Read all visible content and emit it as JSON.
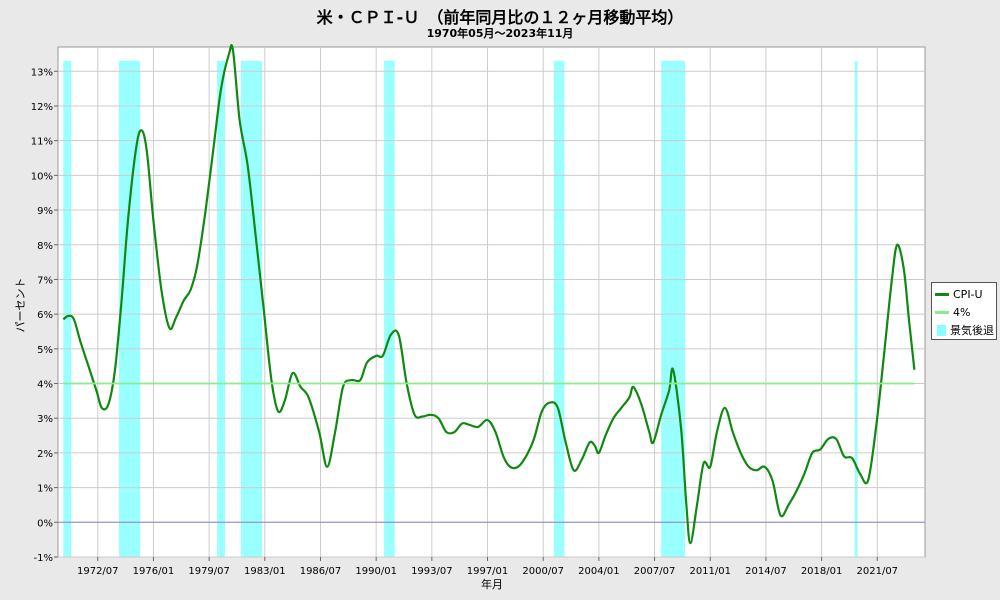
{
  "title": "米・ＣＰＩ-Ｕ　（前年同月比の１２ヶ月移動平均）",
  "subtitle": "1970年05月～2023年11月",
  "colors": {
    "cpi_line": "#118811",
    "four_pct_line": "#88ee88",
    "zero_line": "#8888cc",
    "recession": "#88ffff",
    "plot_bg": "#ffffff",
    "grid": "#cccccc"
  },
  "legend": {
    "items": [
      {
        "label": "CPI-U",
        "kind": "line",
        "color": "#118811"
      },
      {
        "label": "4%",
        "kind": "line",
        "color": "#88ee88"
      },
      {
        "label": "景気後退",
        "kind": "box",
        "color": "#88ffff"
      }
    ]
  },
  "chart_data": {
    "type": "line",
    "title": "米・ＣＰＩ-Ｕ　（前年同月比の１２ヶ月移動平均）",
    "subtitle": "1970年05月～2023年11月",
    "xlabel": "年月",
    "ylabel": "パーセント",
    "xlim": [
      "1970/01",
      "2024/07"
    ],
    "ylim": [
      -1,
      13.7
    ],
    "y_ticks": [
      -1,
      0,
      1,
      2,
      3,
      4,
      5,
      6,
      7,
      8,
      9,
      10,
      11,
      12,
      13
    ],
    "y_tick_labels": [
      "-1%",
      "0%",
      "1%",
      "2%",
      "3%",
      "4%",
      "5%",
      "6%",
      "7%",
      "8%",
      "9%",
      "10%",
      "11%",
      "12%",
      "13%"
    ],
    "x_tick_labels": [
      "1972/07",
      "1976/01",
      "1979/07",
      "1983/01",
      "1986/07",
      "1990/01",
      "1993/07",
      "1997/01",
      "2000/07",
      "2004/01",
      "2007/07",
      "2011/01",
      "2014/07",
      "2018/01",
      "2021/07"
    ],
    "grid": true,
    "legend_position": "right",
    "series": [
      {
        "name": "CPI-U",
        "color": "#118811",
        "points": [
          [
            "1970/05",
            5.85
          ],
          [
            "1970/09",
            5.95
          ],
          [
            "1971/01",
            5.85
          ],
          [
            "1971/06",
            5.2
          ],
          [
            "1971/12",
            4.5
          ],
          [
            "1972/06",
            3.8
          ],
          [
            "1972/10",
            3.3
          ],
          [
            "1973/03",
            3.4
          ],
          [
            "1973/08",
            4.4
          ],
          [
            "1974/01",
            6.4
          ],
          [
            "1974/06",
            8.8
          ],
          [
            "1974/12",
            10.8
          ],
          [
            "1975/04",
            11.3
          ],
          [
            "1975/08",
            10.7
          ],
          [
            "1976/01",
            8.7
          ],
          [
            "1976/07",
            6.7
          ],
          [
            "1977/01",
            5.6
          ],
          [
            "1977/06",
            5.9
          ],
          [
            "1977/12",
            6.4
          ],
          [
            "1978/05",
            6.7
          ],
          [
            "1978/10",
            7.4
          ],
          [
            "1979/04",
            8.9
          ],
          [
            "1979/10",
            10.7
          ],
          [
            "1980/04",
            12.5
          ],
          [
            "1980/10",
            13.5
          ],
          [
            "1981/01",
            13.6
          ],
          [
            "1981/06",
            11.6
          ],
          [
            "1981/12",
            10.3
          ],
          [
            "1982/06",
            8.3
          ],
          [
            "1982/12",
            6.2
          ],
          [
            "1983/06",
            4.1
          ],
          [
            "1983/11",
            3.2
          ],
          [
            "1984/04",
            3.5
          ],
          [
            "1984/10",
            4.3
          ],
          [
            "1985/04",
            3.9
          ],
          [
            "1985/10",
            3.6
          ],
          [
            "1986/06",
            2.6
          ],
          [
            "1986/12",
            1.6
          ],
          [
            "1987/06",
            2.6
          ],
          [
            "1987/12",
            3.9
          ],
          [
            "1988/06",
            4.1
          ],
          [
            "1989/01",
            4.1
          ],
          [
            "1989/06",
            4.6
          ],
          [
            "1990/01",
            4.8
          ],
          [
            "1990/06",
            4.8
          ],
          [
            "1990/12",
            5.4
          ],
          [
            "1991/06",
            5.4
          ],
          [
            "1991/12",
            4.0
          ],
          [
            "1992/06",
            3.1
          ],
          [
            "1992/12",
            3.05
          ],
          [
            "1993/06",
            3.1
          ],
          [
            "1993/12",
            3.0
          ],
          [
            "1994/06",
            2.6
          ],
          [
            "1994/12",
            2.6
          ],
          [
            "1995/06",
            2.85
          ],
          [
            "1995/12",
            2.8
          ],
          [
            "1996/06",
            2.75
          ],
          [
            "1997/01",
            2.95
          ],
          [
            "1997/07",
            2.6
          ],
          [
            "1998/01",
            1.9
          ],
          [
            "1998/06",
            1.6
          ],
          [
            "1998/12",
            1.6
          ],
          [
            "1999/06",
            1.9
          ],
          [
            "1999/12",
            2.4
          ],
          [
            "2000/06",
            3.2
          ],
          [
            "2000/12",
            3.45
          ],
          [
            "2001/06",
            3.3
          ],
          [
            "2001/12",
            2.3
          ],
          [
            "2002/06",
            1.5
          ],
          [
            "2002/12",
            1.8
          ],
          [
            "2003/06",
            2.3
          ],
          [
            "2003/10",
            2.2
          ],
          [
            "2004/01",
            2.0
          ],
          [
            "2004/06",
            2.5
          ],
          [
            "2004/12",
            3.0
          ],
          [
            "2005/06",
            3.3
          ],
          [
            "2005/12",
            3.6
          ],
          [
            "2006/03",
            3.9
          ],
          [
            "2006/09",
            3.4
          ],
          [
            "2007/03",
            2.6
          ],
          [
            "2007/06",
            2.3
          ],
          [
            "2007/12",
            3.1
          ],
          [
            "2008/06",
            3.8
          ],
          [
            "2008/09",
            4.4
          ],
          [
            "2009/03",
            2.7
          ],
          [
            "2009/07",
            0.5
          ],
          [
            "2009/10",
            -0.6
          ],
          [
            "2010/03",
            0.5
          ],
          [
            "2010/08",
            1.7
          ],
          [
            "2011/01",
            1.6
          ],
          [
            "2011/06",
            2.6
          ],
          [
            "2011/12",
            3.3
          ],
          [
            "2012/06",
            2.6
          ],
          [
            "2012/12",
            2.0
          ],
          [
            "2013/06",
            1.6
          ],
          [
            "2013/12",
            1.5
          ],
          [
            "2014/06",
            1.6
          ],
          [
            "2014/12",
            1.2
          ],
          [
            "2015/06",
            0.2
          ],
          [
            "2015/12",
            0.5
          ],
          [
            "2016/06",
            0.9
          ],
          [
            "2016/12",
            1.4
          ],
          [
            "2017/06",
            2.0
          ],
          [
            "2017/12",
            2.1
          ],
          [
            "2018/06",
            2.4
          ],
          [
            "2018/12",
            2.4
          ],
          [
            "2019/06",
            1.9
          ],
          [
            "2019/12",
            1.85
          ],
          [
            "2020/06",
            1.4
          ],
          [
            "2020/12",
            1.2
          ],
          [
            "2021/06",
            2.7
          ],
          [
            "2021/12",
            4.8
          ],
          [
            "2022/06",
            7.0
          ],
          [
            "2022/10",
            8.0
          ],
          [
            "2023/03",
            7.3
          ],
          [
            "2023/07",
            5.8
          ],
          [
            "2023/11",
            4.4
          ]
        ]
      },
      {
        "name": "4%",
        "color": "#88ee88",
        "points": [
          [
            "1970/05",
            4
          ],
          [
            "2023/11",
            4
          ]
        ]
      }
    ],
    "recessions": [
      [
        "1970/05",
        "1970/11"
      ],
      [
        "1973/11",
        "1975/03"
      ],
      [
        "1980/01",
        "1980/07"
      ],
      [
        "1981/07",
        "1982/11"
      ],
      [
        "1990/07",
        "1991/03"
      ],
      [
        "2001/03",
        "2001/11"
      ],
      [
        "2007/12",
        "2009/06"
      ],
      [
        "2020/02",
        "2020/04"
      ]
    ]
  }
}
